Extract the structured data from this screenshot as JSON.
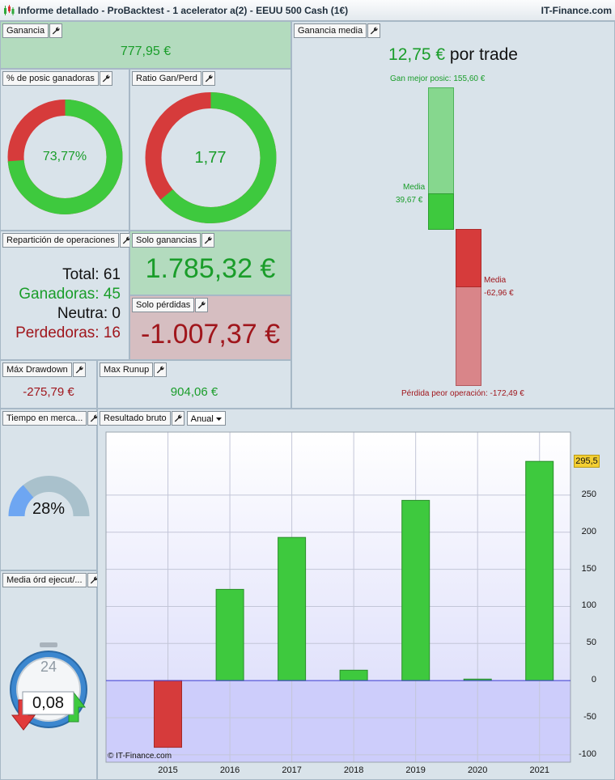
{
  "window": {
    "title": "Informe detallado - ProBacktest - 1  acelerator a(2) - EEUU 500 Cash (1€)",
    "brand": "IT-Finance.com"
  },
  "panels": {
    "ganancia": {
      "label": "Ganancia",
      "value": "777,95 €"
    },
    "pct_ganadoras": {
      "label": "% de posic ganadoras",
      "value": "73,77%",
      "fraction": 0.7377
    },
    "ratio": {
      "label": "Ratio Gan/Perd",
      "value": "1,77",
      "fraction": 0.639
    },
    "ganancia_media": {
      "label": "Ganancia media",
      "value": "12,75 €",
      "suffix": " por trade",
      "best_label": "Gan mejor posic: 155,60 €",
      "win_media_label": "Media",
      "win_media_value": "39,67 €",
      "loss_media_label": "Media",
      "loss_media_value": "-62,96 €",
      "worst_label": "Pérdida peor operación: -172,49 €",
      "best": 155.6,
      "win_avg": 39.67,
      "loss_avg": -62.96,
      "worst": -172.49
    },
    "reparticion": {
      "label": "Repartición de operaciones",
      "total_label": "Total:",
      "total_value": "61",
      "win_label": "Ganadoras:",
      "win_value": "45",
      "neutral_label": "Neutra:",
      "neutral_value": "0",
      "loss_label": "Perdedoras:",
      "loss_value": "16"
    },
    "solo_ganancias": {
      "label": "Solo ganancias",
      "value": "1.785,32 €"
    },
    "solo_perdidas": {
      "label": "Solo pérdidas",
      "value": "-1.007,37 €"
    },
    "max_drawdown": {
      "label": "Máx Drawdown",
      "value": "-275,79 €"
    },
    "max_runup": {
      "label": "Max Runup",
      "value": "904,06 €"
    },
    "tiempo": {
      "label": "Tiempo en merca...",
      "value": "28%",
      "fraction": 0.28
    },
    "media_ord": {
      "label": "Media órd ejecut/...",
      "value": "0,08",
      "clock_number": "24"
    },
    "resultado": {
      "label": "Resultado bruto",
      "dropdown": "Anual",
      "current_value_label": "295,5",
      "copyright": "© IT-Finance.com"
    }
  },
  "colors": {
    "win": "#3ec93e",
    "loss": "#d63b3b",
    "win_light": "#86d78e",
    "loss_light": "#d98589",
    "gauge_fill": "#6ea6f2",
    "gauge_track": "#a9c1cc"
  },
  "chart_data": {
    "type": "bar",
    "categories": [
      "2015",
      "2016",
      "2017",
      "2018",
      "2019",
      "2020",
      "2021"
    ],
    "values": [
      -90,
      123,
      193,
      14,
      243,
      2,
      295.5
    ],
    "ylim": [
      -110,
      335
    ],
    "yticks": [
      -100,
      -50,
      0,
      50,
      100,
      150,
      200,
      250
    ],
    "ytick_labels": [
      "-100",
      "-50",
      "0",
      "50",
      "100",
      "150",
      "200",
      "250"
    ],
    "grid": true
  }
}
